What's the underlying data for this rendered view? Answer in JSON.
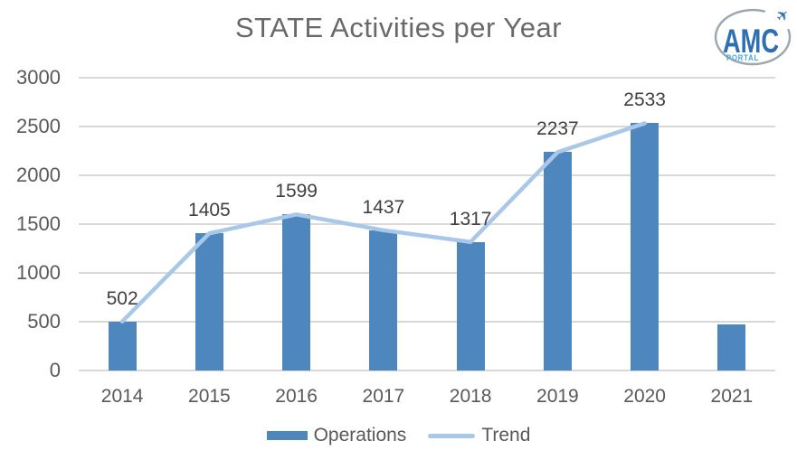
{
  "logo": {
    "brand": "AMC",
    "sub": "PORTAL",
    "plane_glyph": "✈",
    "plane_icon": "airplane-icon"
  },
  "colors": {
    "bar": "#4E86BE",
    "trend": "#A9C7E9",
    "grid": "#D9D9D9",
    "axis_text": "#595959",
    "data_label": "#404040",
    "title_text": "#696969",
    "logo_blue": "#2E6FB2",
    "logo_light_blue": "#3EA7E0",
    "logo_ring": "#9EA7B2"
  },
  "chart_data": {
    "type": "bar",
    "title": "STATE Activities per Year",
    "categories": [
      "2014",
      "2015",
      "2016",
      "2017",
      "2018",
      "2019",
      "2020",
      "2021"
    ],
    "series": [
      {
        "name": "Operations",
        "type": "bar",
        "color": "#4E86BE",
        "values": [
          502,
          1405,
          1599,
          1437,
          1317,
          2237,
          2533,
          470
        ]
      },
      {
        "name": "Trend",
        "type": "line",
        "color": "#A9C7E9",
        "values": [
          502,
          1405,
          1599,
          1437,
          1317,
          2237,
          2533,
          null
        ]
      }
    ],
    "data_labels": [
      "502",
      "1405",
      "1599",
      "1437",
      "1317",
      "2237",
      "2533",
      ""
    ],
    "xlabel": "",
    "ylabel": "",
    "ylim": [
      0,
      3000
    ],
    "yticks": [
      0,
      500,
      1000,
      1500,
      2000,
      2500,
      3000
    ],
    "grid": true,
    "legend_position": "bottom"
  }
}
